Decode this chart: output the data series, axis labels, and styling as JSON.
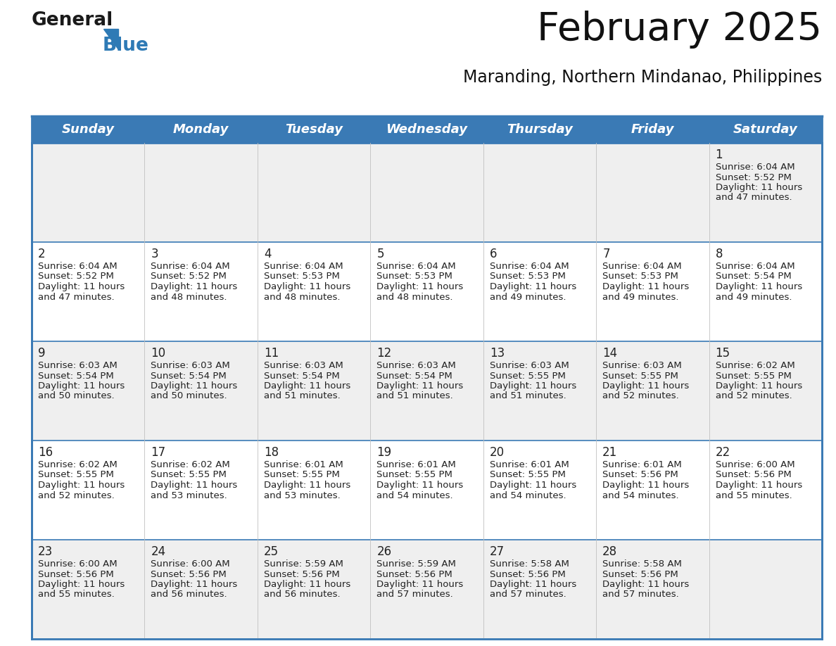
{
  "title": "February 2025",
  "subtitle": "Maranding, Northern Mindanao, Philippines",
  "header_bg": "#3a7ab5",
  "header_text": "#ffffff",
  "cell_bg_light": "#efefef",
  "cell_bg_white": "#ffffff",
  "day_names": [
    "Sunday",
    "Monday",
    "Tuesday",
    "Wednesday",
    "Thursday",
    "Friday",
    "Saturday"
  ],
  "days": [
    {
      "day": 1,
      "col": 6,
      "row": 0,
      "sunrise": "6:04 AM",
      "sunset": "5:52 PM",
      "daylight": "11 hours and 47 minutes."
    },
    {
      "day": 2,
      "col": 0,
      "row": 1,
      "sunrise": "6:04 AM",
      "sunset": "5:52 PM",
      "daylight": "11 hours and 47 minutes."
    },
    {
      "day": 3,
      "col": 1,
      "row": 1,
      "sunrise": "6:04 AM",
      "sunset": "5:52 PM",
      "daylight": "11 hours and 48 minutes."
    },
    {
      "day": 4,
      "col": 2,
      "row": 1,
      "sunrise": "6:04 AM",
      "sunset": "5:53 PM",
      "daylight": "11 hours and 48 minutes."
    },
    {
      "day": 5,
      "col": 3,
      "row": 1,
      "sunrise": "6:04 AM",
      "sunset": "5:53 PM",
      "daylight": "11 hours and 48 minutes."
    },
    {
      "day": 6,
      "col": 4,
      "row": 1,
      "sunrise": "6:04 AM",
      "sunset": "5:53 PM",
      "daylight": "11 hours and 49 minutes."
    },
    {
      "day": 7,
      "col": 5,
      "row": 1,
      "sunrise": "6:04 AM",
      "sunset": "5:53 PM",
      "daylight": "11 hours and 49 minutes."
    },
    {
      "day": 8,
      "col": 6,
      "row": 1,
      "sunrise": "6:04 AM",
      "sunset": "5:54 PM",
      "daylight": "11 hours and 49 minutes."
    },
    {
      "day": 9,
      "col": 0,
      "row": 2,
      "sunrise": "6:03 AM",
      "sunset": "5:54 PM",
      "daylight": "11 hours and 50 minutes."
    },
    {
      "day": 10,
      "col": 1,
      "row": 2,
      "sunrise": "6:03 AM",
      "sunset": "5:54 PM",
      "daylight": "11 hours and 50 minutes."
    },
    {
      "day": 11,
      "col": 2,
      "row": 2,
      "sunrise": "6:03 AM",
      "sunset": "5:54 PM",
      "daylight": "11 hours and 51 minutes."
    },
    {
      "day": 12,
      "col": 3,
      "row": 2,
      "sunrise": "6:03 AM",
      "sunset": "5:54 PM",
      "daylight": "11 hours and 51 minutes."
    },
    {
      "day": 13,
      "col": 4,
      "row": 2,
      "sunrise": "6:03 AM",
      "sunset": "5:55 PM",
      "daylight": "11 hours and 51 minutes."
    },
    {
      "day": 14,
      "col": 5,
      "row": 2,
      "sunrise": "6:03 AM",
      "sunset": "5:55 PM",
      "daylight": "11 hours and 52 minutes."
    },
    {
      "day": 15,
      "col": 6,
      "row": 2,
      "sunrise": "6:02 AM",
      "sunset": "5:55 PM",
      "daylight": "11 hours and 52 minutes."
    },
    {
      "day": 16,
      "col": 0,
      "row": 3,
      "sunrise": "6:02 AM",
      "sunset": "5:55 PM",
      "daylight": "11 hours and 52 minutes."
    },
    {
      "day": 17,
      "col": 1,
      "row": 3,
      "sunrise": "6:02 AM",
      "sunset": "5:55 PM",
      "daylight": "11 hours and 53 minutes."
    },
    {
      "day": 18,
      "col": 2,
      "row": 3,
      "sunrise": "6:01 AM",
      "sunset": "5:55 PM",
      "daylight": "11 hours and 53 minutes."
    },
    {
      "day": 19,
      "col": 3,
      "row": 3,
      "sunrise": "6:01 AM",
      "sunset": "5:55 PM",
      "daylight": "11 hours and 54 minutes."
    },
    {
      "day": 20,
      "col": 4,
      "row": 3,
      "sunrise": "6:01 AM",
      "sunset": "5:55 PM",
      "daylight": "11 hours and 54 minutes."
    },
    {
      "day": 21,
      "col": 5,
      "row": 3,
      "sunrise": "6:01 AM",
      "sunset": "5:56 PM",
      "daylight": "11 hours and 54 minutes."
    },
    {
      "day": 22,
      "col": 6,
      "row": 3,
      "sunrise": "6:00 AM",
      "sunset": "5:56 PM",
      "daylight": "11 hours and 55 minutes."
    },
    {
      "day": 23,
      "col": 0,
      "row": 4,
      "sunrise": "6:00 AM",
      "sunset": "5:56 PM",
      "daylight": "11 hours and 55 minutes."
    },
    {
      "day": 24,
      "col": 1,
      "row": 4,
      "sunrise": "6:00 AM",
      "sunset": "5:56 PM",
      "daylight": "11 hours and 56 minutes."
    },
    {
      "day": 25,
      "col": 2,
      "row": 4,
      "sunrise": "5:59 AM",
      "sunset": "5:56 PM",
      "daylight": "11 hours and 56 minutes."
    },
    {
      "day": 26,
      "col": 3,
      "row": 4,
      "sunrise": "5:59 AM",
      "sunset": "5:56 PM",
      "daylight": "11 hours and 57 minutes."
    },
    {
      "day": 27,
      "col": 4,
      "row": 4,
      "sunrise": "5:58 AM",
      "sunset": "5:56 PM",
      "daylight": "11 hours and 57 minutes."
    },
    {
      "day": 28,
      "col": 5,
      "row": 4,
      "sunrise": "5:58 AM",
      "sunset": "5:56 PM",
      "daylight": "11 hours and 57 minutes."
    }
  ],
  "num_rows": 5,
  "num_cols": 7,
  "logo_color_general": "#1a1a1a",
  "logo_color_blue": "#2e7ab5",
  "logo_triangle_color": "#2e7ab5",
  "title_fontsize": 40,
  "subtitle_fontsize": 17,
  "dayname_fontsize": 13,
  "daynum_fontsize": 12,
  "cell_text_fontsize": 9.5,
  "separator_color": "#3a7ab5",
  "grid_line_color": "#c0c0c0",
  "daynum_color": "#222222",
  "cell_text_color": "#222222"
}
